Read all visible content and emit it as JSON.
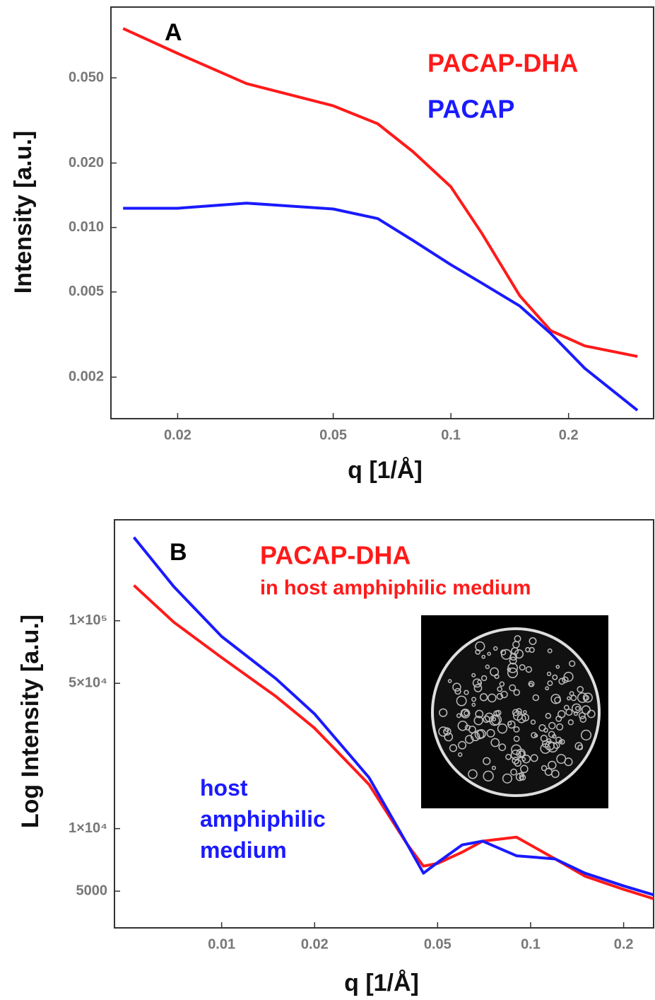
{
  "chart_data": [
    {
      "type": "line",
      "panel_label": "A",
      "xlabel": "q [1/Å]",
      "ylabel": "Intensity [a.u.]",
      "xscale": "log",
      "yscale": "log",
      "x": [
        0.0145,
        0.02,
        0.03,
        0.05,
        0.065,
        0.08,
        0.1,
        0.12,
        0.15,
        0.18,
        0.22,
        0.3
      ],
      "series": [
        {
          "name": "PACAP-DHA",
          "color": "#ff1a1a",
          "values": [
            0.085,
            0.065,
            0.047,
            0.037,
            0.0305,
            0.0226,
            0.0155,
            0.0094,
            0.0048,
            0.0033,
            0.0028,
            0.0025
          ]
        },
        {
          "name": "PACAP",
          "color": "#1a1aff",
          "values": [
            0.0123,
            0.0123,
            0.013,
            0.0122,
            0.011,
            0.0087,
            0.0067,
            0.0055,
            0.0043,
            0.0032,
            0.0022,
            0.0014
          ]
        }
      ],
      "xlim": [
        0.0135,
        0.33
      ],
      "ylim": [
        0.00128,
        0.107
      ],
      "xticks": [
        0.02,
        0.05,
        0.1,
        0.2
      ],
      "yticks": [
        {
          "value": 0.05,
          "label": "0.050"
        },
        {
          "value": 0.02,
          "label": "0.020"
        },
        {
          "value": 0.01,
          "label": "0.010"
        },
        {
          "value": 0.005,
          "label": "0.005"
        },
        {
          "value": 0.002,
          "label": "0.002"
        }
      ]
    },
    {
      "type": "line",
      "panel_label": "B",
      "xlabel": "q [1/Å]",
      "ylabel": "Log Intensity [a.u.]",
      "xscale": "log",
      "yscale": "log",
      "annotation": "in host amphiphilic medium",
      "x": [
        0.0052,
        0.007,
        0.01,
        0.015,
        0.02,
        0.03,
        0.04,
        0.045,
        0.05,
        0.06,
        0.07,
        0.09,
        0.12,
        0.15,
        0.2,
        0.25
      ],
      "series": [
        {
          "name": "PACAP-DHA",
          "color": "#ff1a1a",
          "values": [
            148000,
            98500,
            66500,
            43200,
            30400,
            16300,
            8350,
            6600,
            6800,
            7700,
            8700,
            9100,
            7150,
            5900,
            5100,
            4600
          ]
        },
        {
          "name": "host amphiphilic medium",
          "color": "#1a1aff",
          "values": [
            252000,
            146000,
            84000,
            52600,
            35600,
            17600,
            8350,
            6100,
            6870,
            8350,
            8700,
            7400,
            7150,
            6100,
            5300,
            4800
          ]
        }
      ],
      "xlim": [
        0.0045,
        0.25
      ],
      "ylim": [
        3330,
        306000
      ],
      "xticks": [
        0.01,
        0.02,
        0.05,
        0.1,
        0.2
      ],
      "yticks": [
        {
          "value": 100000,
          "label": "1×10⁵"
        },
        {
          "value": 50000,
          "label": "5×10⁴"
        },
        {
          "value": 10000,
          "label": "1×10⁴"
        },
        5000
      ]
    }
  ]
}
